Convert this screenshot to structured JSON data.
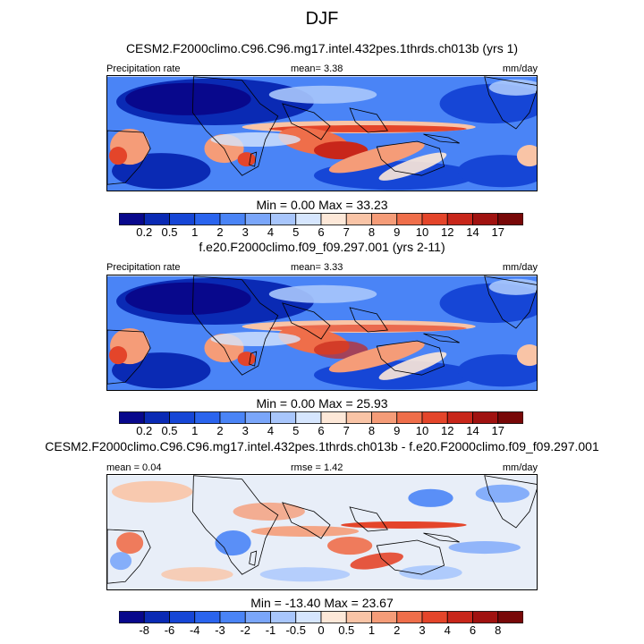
{
  "title": "DJF",
  "panels": [
    {
      "title": "CESM2.F2000climo.C96.C96.mg17.intel.432pes.1thrds.ch013b (yrs 1)",
      "left_label": "Precipitation rate",
      "center_label": "mean=   3.38",
      "right_label": "mm/day",
      "minmax": "Min =   0.00 Max =  33.23",
      "scale": "precip",
      "field": "model"
    },
    {
      "title": "f.e20.F2000climo.f09_f09.297.001 (yrs 2-11)",
      "left_label": "Precipitation rate",
      "center_label": "mean=   3.33",
      "right_label": "mm/day",
      "minmax": "Min =   0.00 Max =  25.93",
      "scale": "precip",
      "field": "ref"
    },
    {
      "title": "CESM2.F2000climo.C96.C96.mg17.intel.432pes.1thrds.ch013b - f.e20.F2000climo.f09_f09.297.001",
      "left_label": "mean =   0.04",
      "center_label": "rmse =   1.42",
      "right_label": "mm/day",
      "minmax": "Min = -13.40 Max =  23.67",
      "scale": "diff",
      "field": "diff"
    }
  ],
  "colorbars": {
    "precip": {
      "colors": [
        "#08088c",
        "#0a2ab4",
        "#1646d6",
        "#2a64ee",
        "#4a84f6",
        "#7aa6fa",
        "#a8c6fc",
        "#d6e6fe",
        "#fde8d8",
        "#f9c4a6",
        "#f59c78",
        "#ef6e4a",
        "#e4452a",
        "#c8261a",
        "#a01210",
        "#780808"
      ],
      "ticks": [
        "0.2",
        "0.5",
        "1",
        "2",
        "3",
        "4",
        "5",
        "6",
        "7",
        "8",
        "9",
        "10",
        "12",
        "14",
        "17"
      ]
    },
    "diff": {
      "colors": [
        "#08088c",
        "#0a2ab4",
        "#1646d6",
        "#2a64ee",
        "#4a84f6",
        "#7aa6fa",
        "#a8c6fc",
        "#d6e6fe",
        "#fde8d8",
        "#f9c4a6",
        "#f59c78",
        "#ef6e4a",
        "#e4452a",
        "#c8261a",
        "#a01210",
        "#780808"
      ],
      "ticks": [
        "-8",
        "-6",
        "-4",
        "-3",
        "-2",
        "-1",
        "-0.5",
        "0",
        "0.5",
        "1",
        "2",
        "3",
        "4",
        "6",
        "8"
      ]
    }
  }
}
